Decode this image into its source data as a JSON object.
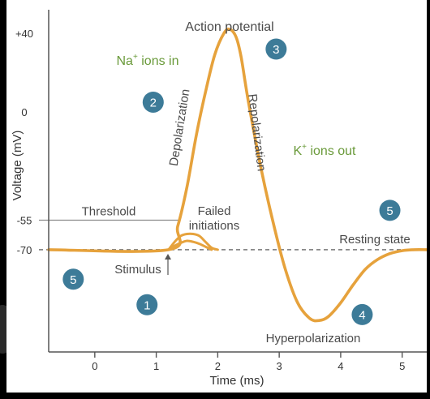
{
  "chart_data": {
    "type": "line",
    "title": "Action potential",
    "xlabel": "Time (ms)",
    "ylabel": "Voltage (mV)",
    "xlim": [
      -0.75,
      5.4
    ],
    "ylim": [
      -122,
      52
    ],
    "x_ticks": [
      0,
      1,
      2,
      3,
      4,
      5
    ],
    "y_ticks": [
      {
        "value": 40,
        "label": "+40"
      },
      {
        "value": 0,
        "label": "0"
      },
      {
        "value": -55,
        "label": "-55"
      },
      {
        "value": -70,
        "label": "-70"
      }
    ],
    "threshold": {
      "value": -55,
      "label": "Threshold"
    },
    "resting": {
      "value": -70,
      "label": "Resting state"
    },
    "series": [
      {
        "role": "action-potential",
        "x": [
          -0.75,
          1.2,
          1.35,
          1.5,
          1.65,
          1.8,
          1.95,
          2.1,
          2.2,
          2.3,
          2.38,
          2.5,
          2.7,
          2.9,
          3.1,
          3.3,
          3.5,
          3.65,
          3.8,
          4.0,
          4.2,
          4.4,
          4.6,
          4.8,
          5.0,
          5.2,
          5.4
        ],
        "y": [
          -70,
          -70,
          -58,
          -38,
          -12,
          10,
          29,
          40,
          42,
          38,
          28,
          5,
          -28,
          -56,
          -80,
          -97,
          -105,
          -106,
          -104,
          -97,
          -88,
          -80,
          -75,
          -72,
          -70.5,
          -70,
          -70
        ]
      },
      {
        "role": "failed-initiation-1",
        "x": [
          1.2,
          1.3,
          1.4,
          1.5,
          1.6,
          1.7,
          1.8,
          1.9,
          2.0
        ],
        "y": [
          -70,
          -66,
          -63,
          -62,
          -62,
          -63,
          -66,
          -69,
          -70
        ]
      },
      {
        "role": "failed-initiation-2",
        "x": [
          1.2,
          1.3,
          1.4,
          1.5,
          1.6,
          1.7,
          1.8,
          1.9
        ],
        "y": [
          -70,
          -68,
          -66.5,
          -65.5,
          -66,
          -67,
          -68.5,
          -70
        ]
      }
    ],
    "annotations": {
      "title": "Action potential",
      "na_ions": {
        "label": "Na",
        "sup": "+",
        "suffix": " ions in"
      },
      "k_ions": {
        "label": "K",
        "sup": "+",
        "suffix": " ions out"
      },
      "depolarization": "Depolarization",
      "repolarization": "Repolarization",
      "failed_initiations": [
        "Failed",
        "initiations"
      ],
      "stimulus": "Stimulus",
      "hyperpolarization": "Hyperpolarization"
    },
    "phase_markers": [
      "5",
      "2",
      "3",
      "5",
      "1",
      "4"
    ],
    "grid": false,
    "colors": {
      "curve": "#e6a23c",
      "text": "#4a4a4a",
      "ions": "#6a9a3a",
      "badge": "#3d7b98",
      "axis": "#555555",
      "threshold": "#8a8a8a",
      "resting": "#888888"
    }
  }
}
